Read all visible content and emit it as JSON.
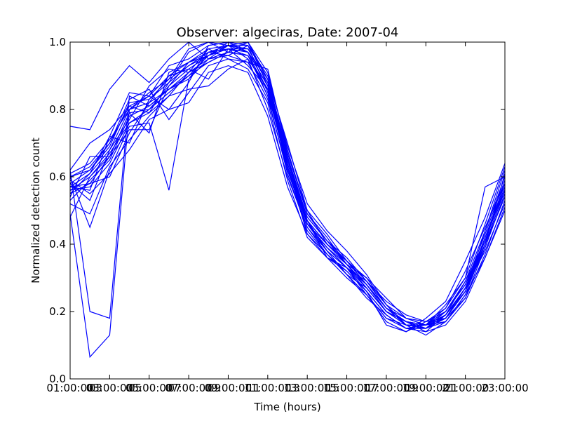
{
  "chart_data": {
    "type": "line",
    "title": "Observer: algeciras, Date: 2007-04",
    "xlabel": "Time (hours)",
    "ylabel": "Normalized detection count",
    "xlim": [
      0,
      22
    ],
    "ylim": [
      0,
      1
    ],
    "grid": false,
    "legend": "none",
    "line_color": "#0000ff",
    "x_ticks": [
      {
        "value": 0,
        "label": "01:00:00"
      },
      {
        "value": 2,
        "label": "03:00:00"
      },
      {
        "value": 4,
        "label": "05:00:00"
      },
      {
        "value": 6,
        "label": "07:00:00"
      },
      {
        "value": 8,
        "label": "09:00:00"
      },
      {
        "value": 10,
        "label": "11:00:00"
      },
      {
        "value": 12,
        "label": "13:00:00"
      },
      {
        "value": 14,
        "label": "15:00:00"
      },
      {
        "value": 16,
        "label": "17:00:00"
      },
      {
        "value": 18,
        "label": "19:00:00"
      },
      {
        "value": 20,
        "label": "21:00:00"
      },
      {
        "value": 22,
        "label": "23:00:00"
      }
    ],
    "x_ticks_overlay": [
      "03",
      "05",
      "07",
      "09",
      "11",
      "13",
      "15",
      "17",
      "19",
      "21"
    ],
    "y_ticks": [
      {
        "value": 0.0,
        "label": "0.0"
      },
      {
        "value": 0.2,
        "label": "0.2"
      },
      {
        "value": 0.4,
        "label": "0.4"
      },
      {
        "value": 0.6,
        "label": "0.6"
      },
      {
        "value": 0.8,
        "label": "0.8"
      },
      {
        "value": 1.0,
        "label": "1.0"
      }
    ],
    "x": [
      0,
      1,
      2,
      3,
      4,
      5,
      6,
      7,
      8,
      9,
      10,
      11,
      12,
      13,
      14,
      15,
      16,
      17,
      18,
      19,
      20,
      21,
      22
    ],
    "series": [
      {
        "values": [
          0.75,
          0.74,
          0.86,
          0.93,
          0.88,
          0.95,
          1.0,
          0.95,
          0.99,
          1.0,
          0.89,
          0.7,
          0.5,
          0.4,
          0.34,
          0.3,
          0.24,
          0.18,
          0.16,
          0.17,
          0.25,
          0.36,
          0.5
        ]
      },
      {
        "values": [
          0.62,
          0.2,
          0.18,
          0.84,
          0.81,
          0.86,
          0.9,
          0.96,
          0.98,
          0.93,
          0.86,
          0.62,
          0.46,
          0.39,
          0.33,
          0.29,
          0.22,
          0.16,
          0.15,
          0.2,
          0.28,
          0.4,
          0.54
        ]
      },
      {
        "values": [
          0.49,
          0.065,
          0.13,
          0.8,
          0.84,
          0.8,
          0.88,
          0.99,
          1.0,
          0.97,
          0.84,
          0.66,
          0.47,
          0.36,
          0.33,
          0.28,
          0.21,
          0.17,
          0.14,
          0.19,
          0.26,
          0.42,
          0.56
        ]
      },
      {
        "values": [
          0.6,
          0.45,
          0.62,
          0.75,
          0.76,
          0.56,
          0.89,
          0.97,
          0.96,
          0.99,
          0.85,
          0.63,
          0.43,
          0.37,
          0.32,
          0.26,
          0.19,
          0.15,
          0.16,
          0.18,
          0.27,
          0.38,
          0.52
        ]
      },
      {
        "values": [
          0.57,
          0.56,
          0.72,
          0.7,
          0.83,
          0.89,
          0.98,
          1.0,
          0.99,
          0.95,
          0.8,
          0.6,
          0.45,
          0.38,
          0.33,
          0.26,
          0.16,
          0.14,
          0.17,
          0.21,
          0.32,
          0.45,
          0.58
        ]
      },
      {
        "values": [
          0.54,
          0.66,
          0.66,
          0.79,
          0.73,
          0.91,
          0.94,
          0.97,
          0.99,
          0.98,
          0.88,
          0.65,
          0.48,
          0.41,
          0.34,
          0.27,
          0.2,
          0.17,
          0.15,
          0.17,
          0.24,
          0.39,
          0.55
        ]
      },
      {
        "values": [
          0.6,
          0.62,
          0.7,
          0.83,
          0.86,
          0.77,
          0.85,
          0.93,
          0.95,
          0.92,
          0.82,
          0.59,
          0.42,
          0.36,
          0.3,
          0.25,
          0.18,
          0.16,
          0.16,
          0.22,
          0.3,
          0.57,
          0.6
        ]
      },
      {
        "values": [
          0.58,
          0.53,
          0.68,
          0.77,
          0.87,
          0.92,
          0.91,
          0.98,
          0.95,
          0.94,
          0.92,
          0.67,
          0.5,
          0.43,
          0.35,
          0.28,
          0.21,
          0.18,
          0.16,
          0.18,
          0.26,
          0.44,
          0.62
        ]
      },
      {
        "values": [
          0.62,
          0.7,
          0.74,
          0.81,
          0.79,
          0.88,
          0.97,
          1.0,
          0.97,
          1.0,
          0.87,
          0.64,
          0.47,
          0.38,
          0.31,
          0.24,
          0.19,
          0.15,
          0.15,
          0.19,
          0.29,
          0.41,
          0.57
        ]
      },
      {
        "values": [
          0.48,
          0.6,
          0.66,
          0.74,
          0.74,
          0.87,
          0.94,
          0.96,
          1.0,
          0.97,
          0.89,
          0.66,
          0.46,
          0.39,
          0.33,
          0.25,
          0.17,
          0.14,
          0.18,
          0.23,
          0.35,
          0.48,
          0.64
        ]
      },
      {
        "values": [
          0.55,
          0.58,
          0.6,
          0.73,
          0.82,
          0.9,
          0.92,
          0.89,
          0.98,
          0.96,
          0.84,
          0.61,
          0.44,
          0.37,
          0.31,
          0.27,
          0.2,
          0.17,
          0.16,
          0.2,
          0.28,
          0.43,
          0.59
        ]
      },
      {
        "values": [
          0.52,
          0.49,
          0.63,
          0.71,
          0.78,
          0.84,
          0.86,
          0.87,
          0.92,
          0.95,
          0.86,
          0.63,
          0.46,
          0.4,
          0.35,
          0.29,
          0.23,
          0.19,
          0.17,
          0.18,
          0.24,
          0.37,
          0.53
        ]
      },
      {
        "values": [
          0.57,
          0.61,
          0.72,
          0.85,
          0.84,
          0.93,
          0.95,
          0.99,
          1.0,
          0.99,
          0.9,
          0.69,
          0.52,
          0.44,
          0.38,
          0.31,
          0.22,
          0.16,
          0.13,
          0.17,
          0.25,
          0.4,
          0.61
        ]
      },
      {
        "values": [
          0.59,
          0.55,
          0.61,
          0.68,
          0.77,
          0.8,
          0.82,
          0.91,
          0.93,
          0.91,
          0.78,
          0.57,
          0.43,
          0.36,
          0.32,
          0.26,
          0.19,
          0.15,
          0.14,
          0.16,
          0.23,
          0.36,
          0.51
        ]
      },
      {
        "values": [
          0.56,
          0.57,
          0.64,
          0.76,
          0.8,
          0.85,
          0.9,
          0.94,
          0.97,
          1.0,
          0.91,
          0.68,
          0.49,
          0.42,
          0.34,
          0.28,
          0.21,
          0.17,
          0.16,
          0.19,
          0.27,
          0.42,
          0.58
        ]
      },
      {
        "values": [
          0.61,
          0.64,
          0.71,
          0.8,
          0.85,
          0.89,
          0.93,
          0.96,
          0.99,
          0.97,
          0.87,
          0.64,
          0.47,
          0.4,
          0.35,
          0.3,
          0.22,
          0.18,
          0.17,
          0.2,
          0.29,
          0.44,
          0.6
        ]
      },
      {
        "values": [
          0.53,
          0.59,
          0.65,
          0.78,
          0.81,
          0.86,
          0.89,
          0.95,
          0.96,
          0.94,
          0.83,
          0.62,
          0.45,
          0.37,
          0.31,
          0.25,
          0.18,
          0.15,
          0.15,
          0.18,
          0.26,
          0.39,
          0.55
        ]
      },
      {
        "values": [
          0.58,
          0.62,
          0.69,
          0.82,
          0.83,
          0.88,
          0.93,
          0.97,
          0.98,
          0.98,
          0.88,
          0.66,
          0.48,
          0.41,
          0.36,
          0.29,
          0.21,
          0.16,
          0.16,
          0.2,
          0.28,
          0.41,
          0.57
        ]
      },
      {
        "values": [
          0.56,
          0.6,
          0.67,
          0.76,
          0.79,
          0.84,
          0.91,
          0.94,
          0.97,
          0.96,
          0.86,
          0.63,
          0.46,
          0.39,
          0.34,
          0.27,
          0.2,
          0.17,
          0.15,
          0.19,
          0.27,
          0.4,
          0.56
        ]
      },
      {
        "values": [
          0.6,
          0.63,
          0.7,
          0.81,
          0.84,
          0.9,
          0.94,
          0.98,
          0.99,
          0.99,
          0.89,
          0.67,
          0.49,
          0.41,
          0.35,
          0.28,
          0.21,
          0.17,
          0.16,
          0.21,
          0.3,
          0.46,
          0.63
        ]
      },
      {
        "values": [
          0.57,
          0.58,
          0.66,
          0.79,
          0.8,
          0.87,
          0.92,
          0.96,
          0.98,
          0.97,
          0.87,
          0.65,
          0.47,
          0.4,
          0.34,
          0.28,
          0.2,
          0.16,
          0.15,
          0.18,
          0.26,
          0.4,
          0.56
        ]
      },
      {
        "values": [
          0.55,
          0.61,
          0.68,
          0.8,
          0.82,
          0.86,
          0.91,
          0.95,
          0.97,
          0.96,
          0.86,
          0.64,
          0.46,
          0.38,
          0.33,
          0.27,
          0.2,
          0.16,
          0.16,
          0.19,
          0.27,
          0.41,
          0.58
        ]
      }
    ]
  }
}
